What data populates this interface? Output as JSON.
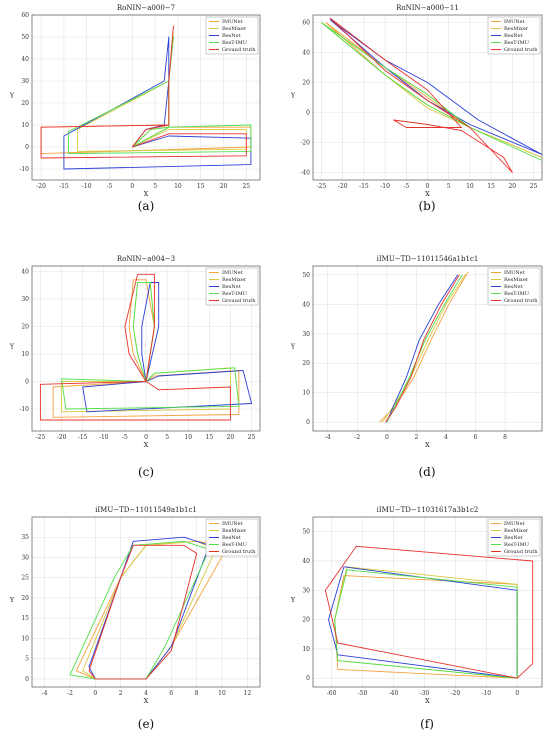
{
  "legend_entries": [
    "IMUNet",
    "ResMixer",
    "ResNet",
    "ResT-IMU",
    "Ground truth"
  ],
  "colors": {
    "IMUNet": "#f5a03c",
    "ResMixer": "#d8c840",
    "ResNet": "#2b3fd6",
    "ResT-IMU": "#4fe04a",
    "Ground truth": "#e8302c"
  },
  "chart_data": [
    {
      "id": "a",
      "panel_label": "(a)",
      "type": "line",
      "title": "RoNIN−a000−7",
      "xlabel": "X",
      "ylabel": "Y",
      "grid": true,
      "legend_position": "top-right",
      "xlim": [
        -22,
        28
      ],
      "ylim": [
        -15,
        60
      ],
      "xticks": [
        -20,
        -15,
        -10,
        -5,
        0,
        5,
        10,
        15,
        20,
        25
      ],
      "yticks": [
        -10,
        0,
        10,
        20,
        30,
        40,
        50,
        60
      ],
      "series": [
        {
          "name": "IMUNet",
          "x": [
            0,
            3,
            8,
            8,
            9,
            8,
            8,
            -20,
            -20,
            26,
            26,
            8,
            0
          ],
          "y": [
            0,
            8,
            10,
            30,
            50,
            30,
            10,
            9,
            -3,
            0,
            9,
            9,
            0
          ]
        },
        {
          "name": "ResMixer",
          "x": [
            0,
            4,
            8,
            8,
            9,
            8,
            -12,
            -12,
            25,
            25,
            8,
            0
          ],
          "y": [
            0,
            8,
            9,
            30,
            52,
            30,
            8,
            -2,
            -1,
            8,
            8,
            0
          ]
        },
        {
          "name": "ResNet",
          "x": [
            0,
            3,
            7,
            8,
            8,
            7,
            -15,
            -15,
            26,
            26,
            8,
            0
          ],
          "y": [
            0,
            8,
            10,
            30,
            50,
            30,
            5,
            -10,
            -8,
            4,
            5,
            0
          ]
        },
        {
          "name": "ResT-IMU",
          "x": [
            0,
            4,
            8,
            8,
            9,
            8,
            -14,
            -14,
            26,
            26,
            8,
            0
          ],
          "y": [
            0,
            8,
            9,
            30,
            50,
            30,
            7,
            -3,
            -2,
            10,
            9,
            0
          ]
        },
        {
          "name": "Ground truth",
          "x": [
            0,
            3,
            8,
            8,
            9,
            8,
            8,
            -20,
            -20,
            25,
            25,
            8,
            0
          ],
          "y": [
            0,
            8,
            10,
            30,
            55,
            30,
            10,
            9,
            -5,
            -4,
            6,
            6,
            0
          ]
        }
      ]
    },
    {
      "id": "b",
      "panel_label": "(b)",
      "type": "line",
      "title": "RoNIN−a000−11",
      "xlabel": "X",
      "ylabel": "Y",
      "grid": true,
      "legend_position": "top-right",
      "xlim": [
        -27,
        27
      ],
      "ylim": [
        -45,
        65
      ],
      "xticks": [
        -25,
        -20,
        -15,
        -10,
        -5,
        0,
        5,
        10,
        15,
        20,
        25
      ],
      "yticks": [
        -40,
        -20,
        0,
        20,
        40,
        60
      ],
      "series": [
        {
          "name": "IMUNet",
          "x": [
            -24,
            -10,
            0,
            10,
            27,
            10,
            0,
            -10,
            -24
          ],
          "y": [
            60,
            30,
            10,
            -10,
            -30,
            -10,
            5,
            25,
            60
          ]
        },
        {
          "name": "ResMixer",
          "x": [
            -25,
            -10,
            0,
            10,
            27,
            10,
            0,
            -10,
            -25
          ],
          "y": [
            60,
            30,
            12,
            -10,
            -30,
            -10,
            3,
            25,
            60
          ]
        },
        {
          "name": "ResNet",
          "x": [
            -23,
            -10,
            0,
            12,
            27,
            10,
            0,
            -10,
            -23
          ],
          "y": [
            62,
            35,
            20,
            -5,
            -28,
            -8,
            8,
            30,
            62
          ]
        },
        {
          "name": "ResT-IMU",
          "x": [
            -25,
            -10,
            0,
            10,
            27,
            10,
            0,
            -10,
            -25
          ],
          "y": [
            60,
            30,
            12,
            -10,
            -32,
            -10,
            5,
            25,
            60
          ]
        },
        {
          "name": "Ground truth",
          "x": [
            -23,
            -10,
            0,
            8,
            -5,
            -8,
            0,
            8,
            18,
            20,
            10,
            0,
            -10,
            -23
          ],
          "y": [
            63,
            35,
            15,
            -10,
            -10,
            -5,
            -8,
            -12,
            -30,
            -40,
            -10,
            8,
            28,
            63
          ]
        }
      ]
    },
    {
      "id": "c",
      "panel_label": "(c)",
      "type": "line",
      "title": "RoNIN−a004−3",
      "xlabel": "X",
      "ylabel": "Y",
      "grid": true,
      "legend_position": "top-right",
      "xlim": [
        -27,
        27
      ],
      "ylim": [
        -18,
        42
      ],
      "xticks": [
        -25,
        -20,
        -15,
        -10,
        -5,
        0,
        5,
        10,
        15,
        20,
        25
      ],
      "yticks": [
        -10,
        0,
        10,
        20,
        30,
        40
      ],
      "series": [
        {
          "name": "IMUNet",
          "x": [
            0,
            -3,
            -4,
            -3,
            0,
            2,
            0,
            -22,
            -22,
            22,
            22,
            2,
            0
          ],
          "y": [
            0,
            10,
            20,
            37,
            37,
            20,
            0,
            -2,
            -13,
            -12,
            4,
            2,
            0
          ]
        },
        {
          "name": "ResMixer",
          "x": [
            0,
            -2,
            -3,
            -2,
            1,
            2,
            0,
            -20,
            -20,
            20,
            20,
            2,
            0
          ],
          "y": [
            0,
            10,
            20,
            36,
            36,
            20,
            0,
            0,
            -11,
            -10,
            5,
            3,
            0
          ]
        },
        {
          "name": "ResNet",
          "x": [
            0,
            -1,
            -1,
            1,
            3,
            3,
            0,
            -15,
            -14,
            25,
            23,
            3,
            0
          ],
          "y": [
            0,
            10,
            20,
            36,
            36,
            20,
            0,
            -2,
            -11,
            -8,
            4,
            2,
            0
          ]
        },
        {
          "name": "ResT-IMU",
          "x": [
            0,
            -2,
            -3,
            -2,
            1,
            2,
            0,
            -20,
            -19,
            22,
            21,
            2,
            0
          ],
          "y": [
            0,
            10,
            20,
            36,
            36,
            20,
            0,
            1,
            -10,
            -9,
            5,
            3,
            0
          ]
        },
        {
          "name": "Ground truth",
          "x": [
            0,
            -4,
            -5,
            -2,
            2,
            2,
            0,
            -25,
            -25,
            20,
            20,
            3,
            0
          ],
          "y": [
            0,
            10,
            20,
            39,
            39,
            20,
            0,
            -1,
            -14,
            -14,
            -2,
            -3,
            0
          ]
        }
      ]
    },
    {
      "id": "d",
      "panel_label": "(d)",
      "type": "line",
      "title": "iIMU−TD−11011546a1b1c1",
      "xlabel": "X",
      "ylabel": "Y",
      "grid": true,
      "legend_position": "top-right",
      "xlim": [
        -5,
        10.5
      ],
      "ylim": [
        -3,
        53
      ],
      "xticks": [
        -4,
        -2,
        0,
        2,
        4,
        6,
        8
      ],
      "yticks": [
        0,
        10,
        20,
        30,
        40,
        50
      ],
      "series": [
        {
          "name": "IMUNet",
          "x": [
            -0.5,
            0.5,
            1.8,
            3,
            4.2,
            5.5
          ],
          "y": [
            0,
            5,
            15,
            28,
            40,
            51
          ]
        },
        {
          "name": "ResMixer",
          "x": [
            -0.3,
            0.4,
            1.6,
            2.8,
            4,
            5.3
          ],
          "y": [
            0,
            5,
            15,
            28,
            40,
            50
          ]
        },
        {
          "name": "ResNet",
          "x": [
            0,
            0.4,
            1.3,
            2.2,
            3.5,
            4.8
          ],
          "y": [
            0,
            5,
            15,
            28,
            40,
            50
          ]
        },
        {
          "name": "ResT-IMU",
          "x": [
            0,
            0.5,
            1.5,
            2.6,
            3.9,
            5.1
          ],
          "y": [
            0,
            5,
            15,
            28,
            40,
            50
          ]
        },
        {
          "name": "Ground truth",
          "x": [
            -0.1,
            0.6,
            1.6,
            2.5,
            3.7,
            4.9
          ],
          "y": [
            0,
            5,
            15,
            28,
            40,
            50
          ]
        }
      ]
    },
    {
      "id": "e",
      "panel_label": "(e)",
      "type": "line",
      "title": "iIMU−TD−11011549a1b1c1",
      "xlabel": "X",
      "ylabel": "Y",
      "grid": true,
      "legend_position": "top-right",
      "xlim": [
        -5,
        13
      ],
      "ylim": [
        -2,
        40
      ],
      "xticks": [
        -4,
        -2,
        0,
        2,
        4,
        6,
        8,
        10,
        12
      ],
      "yticks": [
        0,
        5,
        10,
        15,
        20,
        25,
        30,
        35
      ],
      "series": [
        {
          "name": "IMUNet",
          "x": [
            0,
            -1.5,
            2,
            4,
            8,
            10.5,
            6,
            4,
            0
          ],
          "y": [
            0,
            2,
            25,
            33,
            34,
            33,
            8,
            0,
            0
          ]
        },
        {
          "name": "ResMixer",
          "x": [
            0,
            -1,
            2,
            4,
            8,
            9.5,
            6,
            4,
            0
          ],
          "y": [
            0,
            2,
            25,
            33,
            34,
            32,
            8,
            0,
            0
          ]
        },
        {
          "name": "ResNet",
          "x": [
            0,
            -0.5,
            2,
            3,
            7,
            9,
            6,
            4,
            0
          ],
          "y": [
            0,
            3,
            25,
            34,
            35,
            33,
            8,
            0,
            0
          ]
        },
        {
          "name": "ResT-IMU",
          "x": [
            0,
            -2,
            1.5,
            3,
            7,
            9,
            5.5,
            4,
            0
          ],
          "y": [
            0,
            1,
            25,
            33,
            34,
            32,
            8,
            0,
            0
          ]
        },
        {
          "name": "Ground truth",
          "x": [
            0,
            -0.5,
            2,
            3,
            7,
            8,
            6,
            4,
            0
          ],
          "y": [
            0,
            2,
            25,
            33,
            33,
            31,
            7,
            0,
            0
          ]
        }
      ]
    },
    {
      "id": "f",
      "panel_label": "(f)",
      "type": "line",
      "title": "iIMU−TD−11031617a3b1c2",
      "xlabel": "X",
      "ylabel": "Y",
      "grid": true,
      "legend_position": "top-right",
      "xlim": [
        -66,
        8
      ],
      "ylim": [
        -3,
        55
      ],
      "xticks": [
        -60,
        -50,
        -40,
        -30,
        -20,
        -10,
        0
      ],
      "yticks": [
        0,
        10,
        20,
        30,
        40,
        50
      ],
      "series": [
        {
          "name": "IMUNet",
          "x": [
            0,
            -58,
            -59,
            -56,
            0,
            0
          ],
          "y": [
            0,
            3,
            20,
            35,
            32,
            0
          ]
        },
        {
          "name": "ResMixer",
          "x": [
            0,
            -58,
            -59,
            -55,
            0,
            0
          ],
          "y": [
            0,
            6,
            20,
            38,
            32,
            0
          ]
        },
        {
          "name": "ResNet",
          "x": [
            0,
            -58,
            -61,
            -56,
            0,
            0
          ],
          "y": [
            0,
            8,
            20,
            38,
            30,
            0
          ]
        },
        {
          "name": "ResT-IMU",
          "x": [
            0,
            -58,
            -59,
            -55,
            0,
            0
          ],
          "y": [
            0,
            6,
            20,
            37,
            31,
            0
          ]
        },
        {
          "name": "Ground truth",
          "x": [
            0,
            -58,
            -62,
            -52,
            5,
            5,
            0
          ],
          "y": [
            0,
            12,
            30,
            45,
            40,
            5,
            0
          ]
        }
      ]
    }
  ]
}
